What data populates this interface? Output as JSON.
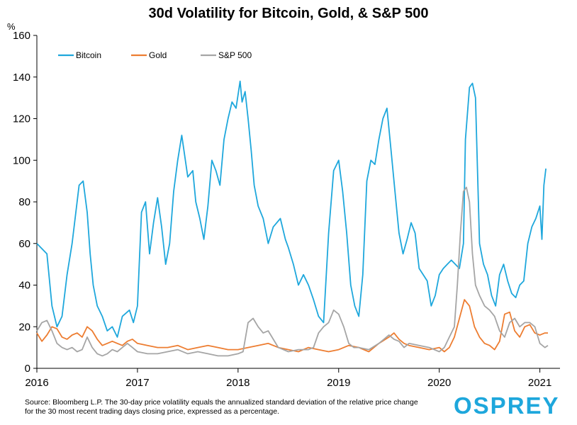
{
  "chart_data": {
    "type": "line",
    "title": "30d Volatility for Bitcoin, Gold, & S&P 500",
    "ylabel": "%",
    "ylim": [
      0,
      160
    ],
    "yticks": [
      "0",
      "20",
      "40",
      "60",
      "80",
      "100",
      "120",
      "140",
      "160"
    ],
    "xlim": [
      2016.0,
      2021.2
    ],
    "xticks": [
      "2016",
      "2017",
      "2018",
      "2019",
      "2020",
      "2021"
    ],
    "grid": false,
    "legend_position": "top-left",
    "series": [
      {
        "name": "Bitcoin",
        "color": "#1ea7dc",
        "x": [
          2016.0,
          2016.04,
          2016.1,
          2016.15,
          2016.2,
          2016.25,
          2016.3,
          2016.35,
          2016.42,
          2016.46,
          2016.5,
          2016.53,
          2016.56,
          2016.6,
          2016.65,
          2016.7,
          2016.75,
          2016.8,
          2016.85,
          2016.92,
          2016.96,
          2017.0,
          2017.04,
          2017.08,
          2017.12,
          2017.16,
          2017.2,
          2017.24,
          2017.28,
          2017.32,
          2017.36,
          2017.4,
          2017.44,
          2017.5,
          2017.55,
          2017.58,
          2017.62,
          2017.66,
          2017.7,
          2017.74,
          2017.78,
          2017.82,
          2017.86,
          2017.9,
          2017.94,
          2017.98,
          2018.02,
          2018.04,
          2018.07,
          2018.1,
          2018.13,
          2018.16,
          2018.2,
          2018.25,
          2018.3,
          2018.35,
          2018.42,
          2018.47,
          2018.5,
          2018.55,
          2018.6,
          2018.65,
          2018.7,
          2018.75,
          2018.8,
          2018.85,
          2018.9,
          2018.95,
          2019.0,
          2019.04,
          2019.08,
          2019.12,
          2019.16,
          2019.2,
          2019.24,
          2019.28,
          2019.32,
          2019.36,
          2019.4,
          2019.44,
          2019.48,
          2019.52,
          2019.56,
          2019.6,
          2019.64,
          2019.68,
          2019.72,
          2019.76,
          2019.8,
          2019.84,
          2019.88,
          2019.92,
          2019.96,
          2020.0,
          2020.04,
          2020.08,
          2020.12,
          2020.16,
          2020.2,
          2020.24,
          2020.26,
          2020.3,
          2020.33,
          2020.36,
          2020.4,
          2020.44,
          2020.48,
          2020.52,
          2020.56,
          2020.6,
          2020.64,
          2020.68,
          2020.72,
          2020.76,
          2020.8,
          2020.84,
          2020.88,
          2020.92,
          2020.96,
          2021.0,
          2021.02,
          2021.04,
          2021.06
        ],
        "values": [
          60,
          58,
          55,
          30,
          20,
          25,
          45,
          60,
          88,
          90,
          75,
          55,
          40,
          30,
          25,
          18,
          20,
          15,
          25,
          28,
          22,
          30,
          75,
          80,
          55,
          70,
          82,
          68,
          50,
          60,
          85,
          100,
          112,
          92,
          95,
          80,
          72,
          62,
          78,
          100,
          95,
          88,
          110,
          120,
          128,
          125,
          138,
          128,
          133,
          120,
          105,
          88,
          78,
          72,
          60,
          68,
          72,
          62,
          58,
          50,
          40,
          45,
          40,
          33,
          25,
          22,
          65,
          95,
          100,
          85,
          65,
          40,
          30,
          25,
          45,
          90,
          100,
          98,
          110,
          120,
          125,
          105,
          85,
          65,
          55,
          62,
          70,
          65,
          48,
          45,
          42,
          30,
          35,
          45,
          48,
          50,
          52,
          50,
          48,
          60,
          110,
          135,
          137,
          130,
          60,
          50,
          45,
          35,
          30,
          45,
          50,
          42,
          36,
          34,
          40,
          42,
          60,
          68,
          72,
          78,
          62,
          88,
          96
        ]
      },
      {
        "name": "Gold",
        "color": "#ed7d31",
        "x": [
          2016.0,
          2016.05,
          2016.1,
          2016.15,
          2016.2,
          2016.25,
          2016.3,
          2016.35,
          2016.4,
          2016.45,
          2016.5,
          2016.55,
          2016.6,
          2016.65,
          2016.7,
          2016.75,
          2016.8,
          2016.85,
          2016.9,
          2016.95,
          2017.0,
          2017.1,
          2017.2,
          2017.3,
          2017.4,
          2017.5,
          2017.6,
          2017.7,
          2017.8,
          2017.9,
          2018.0,
          2018.1,
          2018.2,
          2018.3,
          2018.4,
          2018.5,
          2018.6,
          2018.7,
          2018.8,
          2018.9,
          2019.0,
          2019.1,
          2019.2,
          2019.3,
          2019.4,
          2019.5,
          2019.55,
          2019.6,
          2019.65,
          2019.7,
          2019.8,
          2019.9,
          2020.0,
          2020.05,
          2020.1,
          2020.15,
          2020.2,
          2020.25,
          2020.3,
          2020.35,
          2020.4,
          2020.45,
          2020.5,
          2020.55,
          2020.6,
          2020.65,
          2020.7,
          2020.75,
          2020.8,
          2020.85,
          2020.9,
          2020.95,
          2021.0,
          2021.05,
          2021.08
        ],
        "values": [
          17,
          13,
          16,
          20,
          19,
          15,
          14,
          16,
          17,
          15,
          20,
          18,
          14,
          11,
          12,
          13,
          12,
          11,
          13,
          14,
          12,
          11,
          10,
          10,
          11,
          9,
          10,
          11,
          10,
          9,
          9,
          10,
          11,
          12,
          10,
          9,
          8,
          10,
          9,
          8,
          9,
          11,
          10,
          8,
          12,
          15,
          17,
          14,
          12,
          11,
          10,
          9,
          10,
          8,
          10,
          15,
          24,
          33,
          30,
          20,
          15,
          12,
          11,
          9,
          13,
          26,
          27,
          18,
          15,
          20,
          21,
          17,
          16,
          17,
          17
        ]
      },
      {
        "name": "S&P 500",
        "color": "#a5a5a5",
        "x": [
          2016.0,
          2016.05,
          2016.1,
          2016.15,
          2016.2,
          2016.25,
          2016.3,
          2016.35,
          2016.4,
          2016.45,
          2016.5,
          2016.55,
          2016.6,
          2016.65,
          2016.7,
          2016.75,
          2016.8,
          2016.85,
          2016.9,
          2016.95,
          2017.0,
          2017.1,
          2017.2,
          2017.3,
          2017.4,
          2017.5,
          2017.6,
          2017.7,
          2017.8,
          2017.9,
          2018.0,
          2018.05,
          2018.1,
          2018.15,
          2018.2,
          2018.25,
          2018.3,
          2018.35,
          2018.4,
          2018.5,
          2018.6,
          2018.7,
          2018.75,
          2018.8,
          2018.85,
          2018.9,
          2018.95,
          2019.0,
          2019.05,
          2019.1,
          2019.15,
          2019.2,
          2019.3,
          2019.4,
          2019.45,
          2019.5,
          2019.55,
          2019.6,
          2019.65,
          2019.7,
          2019.8,
          2019.9,
          2020.0,
          2020.05,
          2020.1,
          2020.15,
          2020.18,
          2020.21,
          2020.24,
          2020.27,
          2020.3,
          2020.33,
          2020.36,
          2020.4,
          2020.45,
          2020.5,
          2020.55,
          2020.6,
          2020.65,
          2020.7,
          2020.75,
          2020.8,
          2020.85,
          2020.9,
          2020.95,
          2021.0,
          2021.05,
          2021.08
        ],
        "values": [
          18,
          22,
          23,
          18,
          12,
          10,
          9,
          10,
          8,
          9,
          15,
          10,
          7,
          6,
          7,
          9,
          8,
          10,
          12,
          10,
          8,
          7,
          7,
          8,
          9,
          7,
          8,
          7,
          6,
          6,
          7,
          8,
          22,
          24,
          20,
          17,
          18,
          14,
          10,
          8,
          9,
          9,
          10,
          17,
          20,
          22,
          28,
          26,
          20,
          12,
          10,
          10,
          9,
          12,
          14,
          16,
          14,
          13,
          10,
          12,
          11,
          10,
          8,
          10,
          15,
          20,
          40,
          65,
          85,
          87,
          80,
          55,
          40,
          35,
          30,
          28,
          25,
          18,
          15,
          22,
          24,
          20,
          22,
          22,
          20,
          12,
          10,
          11
        ]
      }
    ],
    "source_note": "Source: Bloomberg L.P. The 30-day price volatility equals the annualized standard deviation of the relative price change for the 30 most recent trading days closing price, expressed as a percentage.",
    "brand": "OSPREY"
  }
}
